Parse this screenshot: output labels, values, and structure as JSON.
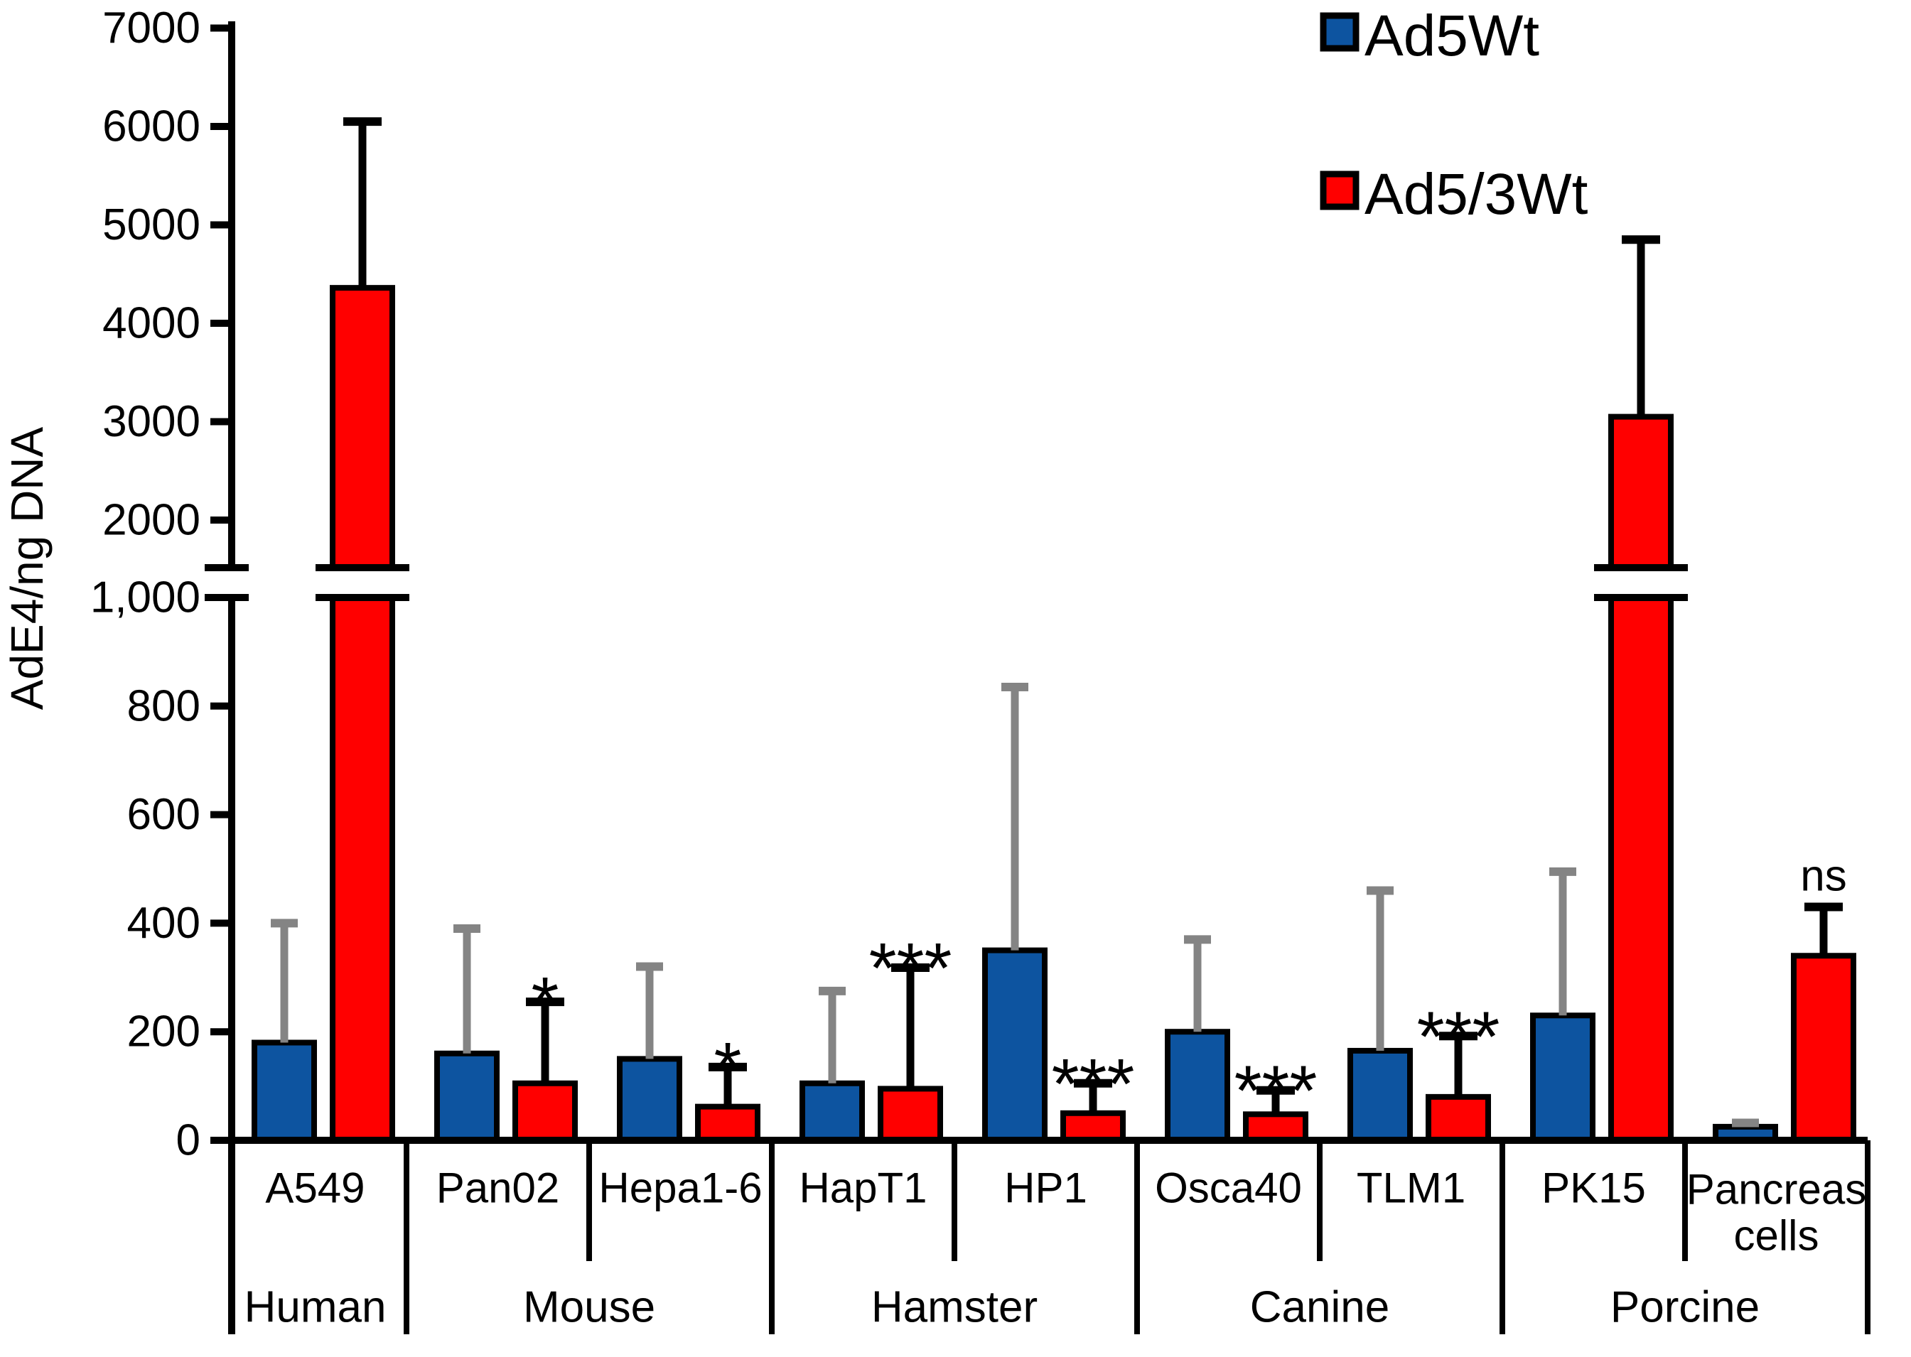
{
  "figure": {
    "background": "#ffffff"
  },
  "chart_data": {
    "type": "bar",
    "title": "",
    "ylabel": "AdE4/ng DNA",
    "legend_position": "top-right",
    "legend": [
      {
        "label": "Ad5Wt",
        "color": "#0D54A0"
      },
      {
        "label": "Ad5/3Wt",
        "color": "#FF0000"
      }
    ],
    "bar_outline_color": "#000000",
    "error_bar_colors": {
      "Ad5Wt": "#848484",
      "Ad5/3Wt": "#000000"
    },
    "axis": {
      "broken": true,
      "lower_range": [
        0,
        1000
      ],
      "upper_range": [
        1500,
        7000
      ],
      "lower_ticks": [
        {
          "v": 0,
          "label": "0"
        },
        {
          "v": 200,
          "label": "200"
        },
        {
          "v": 400,
          "label": "400"
        },
        {
          "v": 600,
          "label": "600"
        },
        {
          "v": 800,
          "label": "800"
        },
        {
          "v": 1000,
          "label": "1,000"
        }
      ],
      "upper_ticks": [
        {
          "v": 2000,
          "label": "2000"
        },
        {
          "v": 3000,
          "label": "3000"
        },
        {
          "v": 4000,
          "label": "4000"
        },
        {
          "v": 5000,
          "label": "5000"
        },
        {
          "v": 6000,
          "label": "6000"
        },
        {
          "v": 7000,
          "label": "7000"
        }
      ]
    },
    "groups": [
      {
        "species": "Human",
        "cells": [
          {
            "name": "A549",
            "lines": [
              "A549"
            ],
            "Ad5Wt": {
              "value": 180,
              "err": 400
            },
            "Ad5_3Wt": {
              "value": 4360,
              "err": 6050
            },
            "sig": ""
          }
        ]
      },
      {
        "species": "Mouse",
        "cells": [
          {
            "name": "Pan02",
            "lines": [
              "Pan02"
            ],
            "Ad5Wt": {
              "value": 160,
              "err": 390
            },
            "Ad5_3Wt": {
              "value": 105,
              "err": 255
            },
            "sig": "*"
          },
          {
            "name": "Hepa1-6",
            "lines": [
              "Hepa1-6"
            ],
            "Ad5Wt": {
              "value": 150,
              "err": 320
            },
            "Ad5_3Wt": {
              "value": 62,
              "err": 135
            },
            "sig": "*"
          }
        ]
      },
      {
        "species": "Hamster",
        "cells": [
          {
            "name": "HapT1",
            "lines": [
              "HapT1"
            ],
            "Ad5Wt": {
              "value": 105,
              "err": 275
            },
            "Ad5_3Wt": {
              "value": 95,
              "err": 318
            },
            "sig": "***"
          },
          {
            "name": "HP1",
            "lines": [
              "HP1"
            ],
            "Ad5Wt": {
              "value": 350,
              "err": 835
            },
            "Ad5_3Wt": {
              "value": 50,
              "err": 105
            },
            "sig": "***"
          }
        ]
      },
      {
        "species": "Canine",
        "cells": [
          {
            "name": "Osca40",
            "lines": [
              "Osca40"
            ],
            "Ad5Wt": {
              "value": 200,
              "err": 370
            },
            "Ad5_3Wt": {
              "value": 48,
              "err": 92
            },
            "sig": "***"
          },
          {
            "name": "TLM1",
            "lines": [
              "TLM1"
            ],
            "Ad5Wt": {
              "value": 165,
              "err": 460
            },
            "Ad5_3Wt": {
              "value": 80,
              "err": 192
            },
            "sig": "***"
          }
        ]
      },
      {
        "species": "Porcine",
        "cells": [
          {
            "name": "PK15",
            "lines": [
              "PK15"
            ],
            "Ad5Wt": {
              "value": 230,
              "err": 495
            },
            "Ad5_3Wt": {
              "value": 3050,
              "err": 4850
            },
            "sig": ""
          },
          {
            "name": "Pancreas cells",
            "lines": [
              "Pancreas",
              "cells"
            ],
            "Ad5Wt": {
              "value": 25,
              "err": 32
            },
            "Ad5_3Wt": {
              "value": 340,
              "err": 430
            },
            "sig": "ns"
          }
        ]
      }
    ]
  }
}
